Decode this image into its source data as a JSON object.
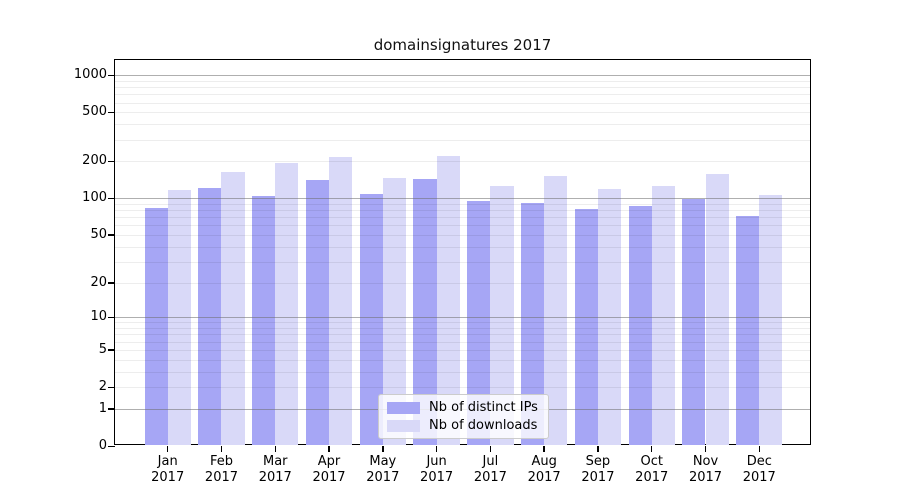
{
  "chart_data": {
    "type": "bar",
    "title": "domainsignatures 2017",
    "categories": [
      "Jan 2017",
      "Feb 2017",
      "Mar 2017",
      "Apr 2017",
      "May 2017",
      "Jun 2017",
      "Jul 2017",
      "Aug 2017",
      "Sep 2017",
      "Oct 2017",
      "Nov 2017",
      "Dec 2017"
    ],
    "series": [
      {
        "name": "Nb of distinct IPs",
        "color": "#a6a6f5",
        "values": [
          83,
          121,
          105,
          142,
          108,
          143,
          95,
          91,
          81,
          87,
          99,
          72
        ]
      },
      {
        "name": "Nb of downloads",
        "color": "#d9d9f8",
        "values": [
          116,
          163,
          195,
          216,
          147,
          219,
          126,
          152,
          119,
          127,
          159,
          106
        ]
      }
    ],
    "xlabel": "",
    "ylabel": "",
    "yscale": "log-like (log10 of value+1), zero shown at axis bottom",
    "y_ticks": [
      1000,
      500,
      200,
      100,
      50,
      20,
      10,
      5,
      2,
      1,
      0
    ],
    "ylim": [
      0,
      1300
    ],
    "grid": {
      "major_at": [
        1,
        10,
        100,
        1000
      ],
      "minor": "2-9 per decade",
      "drawn_above_bars": true
    },
    "legend_position": "lower center, inside plot"
  }
}
